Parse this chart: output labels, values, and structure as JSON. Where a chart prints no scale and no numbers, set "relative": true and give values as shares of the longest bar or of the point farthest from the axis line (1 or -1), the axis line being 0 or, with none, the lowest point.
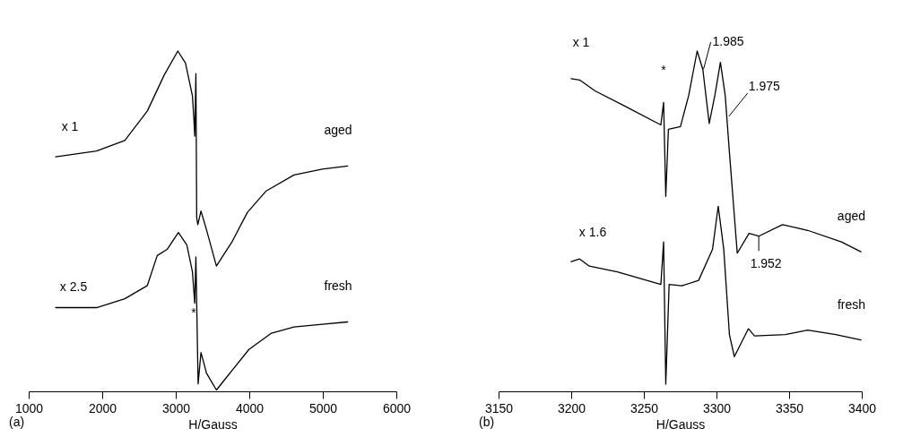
{
  "chart_data": [
    {
      "type": "line",
      "relative": true,
      "xlabel": "H/Gauss",
      "xlim": [
        1000,
        6000
      ],
      "xticks": [
        1000,
        2000,
        3000,
        4000,
        5000,
        6000
      ],
      "series": [
        {
          "name": "aged",
          "color": "#000000",
          "x": [
            1367,
            1923,
            2307,
            2614,
            2844,
            3028,
            3132,
            3227,
            3247,
            3258,
            3274,
            3285,
            3300,
            3343,
            3419,
            3553,
            3764,
            3975,
            4225,
            4608,
            4992,
            5337
          ],
          "values": [
            0.689,
            0.706,
            0.737,
            0.824,
            0.93,
            1.0,
            0.965,
            0.868,
            0.798,
            0.75,
            0.934,
            0.51,
            0.49,
            0.53,
            0.474,
            0.368,
            0.439,
            0.526,
            0.588,
            0.636,
            0.653,
            0.662
          ]
        },
        {
          "name": "fresh",
          "color": "#000000",
          "x": [
            1367,
            1923,
            2307,
            2614,
            2748,
            2882,
            3036,
            3151,
            3227,
            3258,
            3274,
            3304,
            3343,
            3419,
            3553,
            3764,
            3995,
            4301,
            4608,
            4992,
            5337
          ],
          "values": [
            0.246,
            0.246,
            0.272,
            0.311,
            0.399,
            0.417,
            0.467,
            0.43,
            0.351,
            0.259,
            0.395,
            0.022,
            0.114,
            0.053,
            0.004,
            0.061,
            0.123,
            0.171,
            0.189,
            0.197,
            0.204
          ]
        }
      ],
      "annotations": [
        "x 1",
        "x 2.5",
        {
          "text": "*",
          "x": 3243,
          "y": 0.23
        },
        "(a)"
      ]
    },
    {
      "type": "line",
      "relative": true,
      "xlabel": "H/Gauss",
      "xlim": [
        3150,
        3400
      ],
      "xticks": [
        3150,
        3200,
        3250,
        3300,
        3350,
        3400
      ],
      "series": [
        {
          "name": "aged",
          "color": "#000000",
          "x": [
            3200,
            3205.8,
            3216.4,
            3235.6,
            3261.7,
            3263.6,
            3265.1,
            3266.9,
            3275.2,
            3280.9,
            3286.7,
            3290.6,
            3295,
            3298.9,
            3302.7,
            3306,
            3308.9,
            3314.3,
            3322.4,
            3329.1,
            3345.5,
            3362.8,
            3386,
            3399.4
          ],
          "values": [
            0.919,
            0.915,
            0.883,
            0.841,
            0.783,
            0.849,
            0.573,
            0.77,
            0.778,
            0.87,
            1.0,
            0.946,
            0.787,
            0.87,
            0.967,
            0.87,
            0.703,
            0.406,
            0.464,
            0.456,
            0.49,
            0.473,
            0.439,
            0.41
          ]
        },
        {
          "name": "fresh",
          "color": "#000000",
          "x": [
            3200,
            3205.8,
            3212.5,
            3231.8,
            3261.7,
            3263.6,
            3265.1,
            3267.4,
            3276.1,
            3287.7,
            3297.3,
            3301.2,
            3305,
            3308.9,
            3312.3,
            3322,
            3326.2,
            3347.4,
            3362.8,
            3382.1,
            3399.4
          ],
          "values": [
            0.381,
            0.389,
            0.368,
            0.351,
            0.314,
            0.439,
            0.021,
            0.314,
            0.31,
            0.326,
            0.418,
            0.544,
            0.418,
            0.167,
            0.102,
            0.184,
            0.163,
            0.167,
            0.18,
            0.167,
            0.151
          ]
        }
      ],
      "annotations": [
        "x 1",
        "*",
        {
          "text": "1.985",
          "x": 3291.1,
          "y": 0.947
        },
        {
          "text": "1.975",
          "x": 3308.5,
          "y": 0.808
        },
        "x 1.6",
        {
          "text": "1.952",
          "x": 3329.1,
          "y": 0.457
        },
        "(b)"
      ]
    }
  ]
}
